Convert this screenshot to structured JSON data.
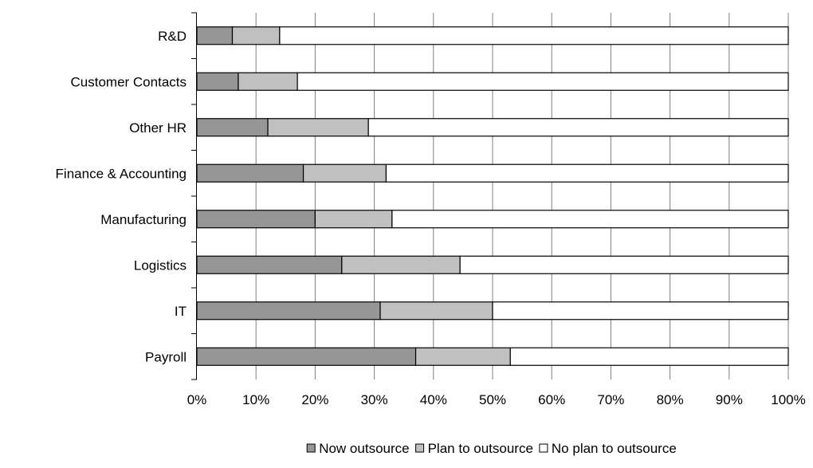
{
  "chart_data": {
    "type": "bar",
    "orientation": "horizontal",
    "stacked": "percent",
    "categories": [
      "R&D",
      "Customer Contacts",
      "Other HR",
      "Finance & Accounting",
      "Manufacturing",
      "Logistics",
      "IT",
      "Payroll"
    ],
    "series": [
      {
        "name": "Now outsource",
        "color": "#969696",
        "values": [
          6,
          7,
          12,
          18,
          20,
          24.5,
          31,
          37
        ]
      },
      {
        "name": "Plan to outsource",
        "color": "#c0c0c0",
        "values": [
          8,
          10,
          17,
          14,
          13,
          20,
          19,
          16
        ]
      },
      {
        "name": "No plan to outsource",
        "color": "#ffffff",
        "values": [
          86,
          83,
          71,
          68,
          67,
          55.5,
          50,
          47
        ]
      }
    ],
    "xlim": [
      0,
      100
    ],
    "x_ticks": [
      "0%",
      "10%",
      "20%",
      "30%",
      "40%",
      "50%",
      "60%",
      "70%",
      "80%",
      "90%",
      "100%"
    ],
    "grid": true,
    "legend_position": "bottom"
  }
}
